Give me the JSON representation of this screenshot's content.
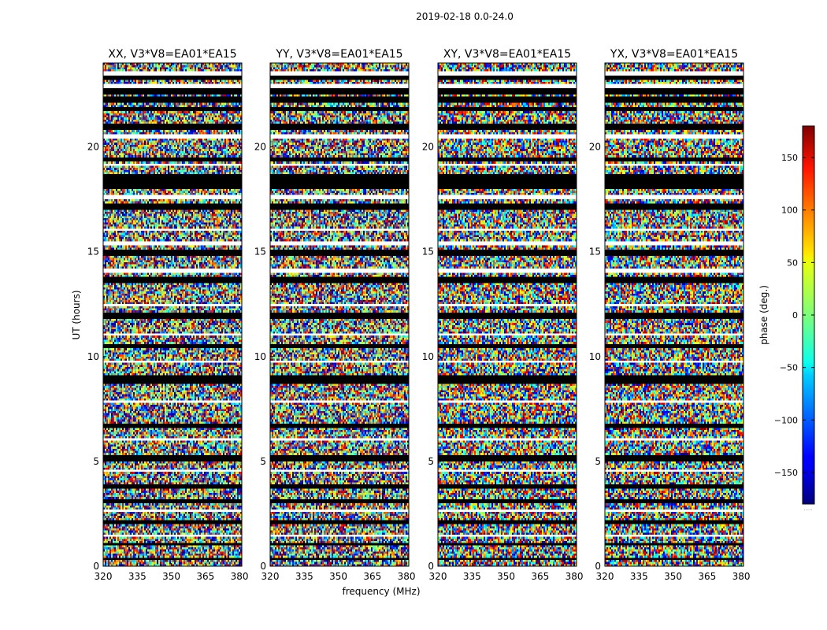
{
  "figure": {
    "suptitle": "2019-02-18 0.0-24.0",
    "xlabel": "frequency (MHz)",
    "ylabel": "UT (hours)"
  },
  "chart_data": {
    "type": "heatmap",
    "panels": [
      {
        "title": "XX, V3*V8=EA01*EA15",
        "product": "XX"
      },
      {
        "title": "YY, V3*V8=EA01*EA15",
        "product": "YY"
      },
      {
        "title": "XY, V3*V8=EA01*EA15",
        "product": "XY"
      },
      {
        "title": "YX, V3*V8=EA01*EA15",
        "product": "YX"
      }
    ],
    "x": {
      "label": "frequency (MHz)",
      "range": [
        320,
        381
      ],
      "ticks": [
        320,
        335,
        350,
        365,
        380
      ],
      "tick_labels": [
        "320",
        "335",
        "350",
        "365",
        "380"
      ]
    },
    "y": {
      "label": "UT (hours)",
      "range": [
        0,
        24
      ],
      "ticks": [
        0,
        5,
        10,
        15,
        20
      ],
      "tick_labels": [
        "0",
        "5",
        "10",
        "15",
        "20"
      ]
    },
    "colorbar": {
      "label": "phase (deg.)",
      "range": [
        -180,
        180
      ],
      "ticks": [
        150,
        100,
        50,
        0,
        -50,
        -100,
        -150
      ],
      "tick_labels": [
        "150",
        "100",
        "50",
        "0",
        "−50",
        "−100",
        "−150"
      ],
      "colormap": "jet",
      "footnote": "....."
    },
    "flagged_bands_hours": [
      [
        23.25,
        23.4
      ],
      [
        22.55,
        22.75
      ],
      [
        22.1,
        22.4
      ],
      [
        21.75,
        21.9
      ],
      [
        20.85,
        21.05
      ],
      [
        19.35,
        19.5
      ],
      [
        18.05,
        18.65
      ],
      [
        17.05,
        17.25
      ],
      [
        14.85,
        15.1
      ],
      [
        13.55,
        13.75
      ],
      [
        11.85,
        12.05
      ],
      [
        10.45,
        10.6
      ],
      [
        8.75,
        9.05
      ],
      [
        6.6,
        6.8
      ],
      [
        5.05,
        5.25
      ],
      [
        3.75,
        3.9
      ],
      [
        3.0,
        3.15
      ],
      [
        2.0,
        2.15
      ],
      [
        1.0,
        1.1
      ],
      [
        0.3,
        0.42
      ]
    ],
    "blank_bands_hours": [
      [
        23.45,
        23.55
      ],
      [
        22.85,
        22.95
      ],
      [
        20.45,
        20.55
      ],
      [
        19.1,
        19.2
      ],
      [
        17.55,
        17.65
      ],
      [
        16.0,
        16.1
      ],
      [
        15.35,
        15.45
      ],
      [
        14.05,
        14.15
      ],
      [
        12.4,
        12.5
      ],
      [
        11.05,
        11.12
      ],
      [
        9.7,
        9.78
      ],
      [
        7.8,
        7.88
      ],
      [
        6.0,
        6.08
      ],
      [
        4.5,
        4.6
      ],
      [
        2.6,
        2.68
      ],
      [
        1.4,
        1.48
      ]
    ]
  }
}
